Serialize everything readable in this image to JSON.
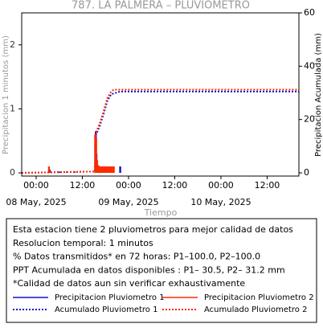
{
  "chart_data": {
    "type": "bar",
    "title": "787. LA PALMERA – PLUVIOMETRO",
    "ylabel": "Precipitacion 1 minutos (mm)",
    "y2label": "Precipitacion Acumulada (mm)",
    "xlabel": "Tiempo",
    "xlim": [
      "2025-05-07T20:15",
      "2025-05-10T20:15"
    ],
    "xticks": [
      {
        "value": "2025-05-08T00:00",
        "label": "00:00"
      },
      {
        "value": "2025-05-08T12:00",
        "label": "12:00"
      },
      {
        "value": "2025-05-09T00:00",
        "label": "00:00"
      },
      {
        "value": "2025-05-09T12:00",
        "label": "12:00"
      },
      {
        "value": "2025-05-10T00:00",
        "label": "00:00"
      },
      {
        "value": "2025-05-10T12:00",
        "label": "12:00"
      }
    ],
    "xdate_labels": [
      {
        "value": "2025-05-08T00:00",
        "label": "08 May, 2025"
      },
      {
        "value": "2025-05-09T00:00",
        "label": "09 May, 2025"
      },
      {
        "value": "2025-05-10T00:00",
        "label": "10 May, 2025"
      }
    ],
    "ylim": [
      -0.05,
      2.5
    ],
    "yticks": [
      0,
      1,
      2
    ],
    "y2lim": [
      -1.2,
      60
    ],
    "y2ticks": [
      0,
      20,
      40,
      60
    ],
    "series": [
      {
        "name": "Precipitacion Pluviometro 1",
        "color": "#1010d0",
        "kind": "bar",
        "x": [
          "2025-05-08T03:30",
          "2025-05-08T06:00",
          "2025-05-08T08:00",
          "2025-05-08T10:00",
          "2025-05-08T15:30",
          "2025-05-08T15:40",
          "2025-05-08T16:00",
          "2025-05-08T17:00",
          "2025-05-08T18:00",
          "2025-05-08T19:00",
          "2025-05-08T21:50"
        ],
        "values": [
          0.05,
          0.02,
          0.02,
          0.02,
          0.65,
          0.3,
          0.1,
          0.1,
          0.1,
          0.1,
          0.1
        ]
      },
      {
        "name": "Precipitacion Pluviometro 2",
        "color": "#ff2a00",
        "kind": "bar",
        "x": [
          "2025-05-08T03:20",
          "2025-05-08T15:20",
          "2025-05-08T15:35",
          "2025-05-08T15:50",
          "2025-05-08T16:10",
          "2025-05-08T16:30",
          "2025-05-08T16:50",
          "2025-05-08T17:10",
          "2025-05-08T17:30",
          "2025-05-08T17:50",
          "2025-05-08T18:10",
          "2025-05-08T18:30",
          "2025-05-08T18:50",
          "2025-05-08T19:10",
          "2025-05-08T19:30",
          "2025-05-08T19:50",
          "2025-05-08T20:10"
        ],
        "values": [
          0.1,
          0.6,
          0.55,
          0.2,
          0.12,
          0.1,
          0.1,
          0.1,
          0.1,
          0.1,
          0.1,
          0.1,
          0.1,
          0.1,
          0.1,
          0.1,
          0.1
        ]
      },
      {
        "name": "Acumulado Pluviometro 1",
        "color": "#1010d0",
        "kind": "line",
        "dash": "2,2",
        "axis": "y2",
        "x": [
          "2025-05-07T20:15",
          "2025-05-08T15:15",
          "2025-05-08T15:30",
          "2025-05-08T16:30",
          "2025-05-08T17:30",
          "2025-05-08T18:30",
          "2025-05-08T19:30",
          "2025-05-08T21:50",
          "2025-05-10T20:15"
        ],
        "values": [
          0,
          0.5,
          14,
          17.5,
          22,
          27,
          29.5,
          30.5,
          30.5
        ]
      },
      {
        "name": "Acumulado Pluviometro 2",
        "color": "#ff2a00",
        "kind": "line",
        "dash": "2,2",
        "axis": "y2",
        "x": [
          "2025-05-07T20:15",
          "2025-05-08T15:15",
          "2025-05-08T15:30",
          "2025-05-08T16:30",
          "2025-05-08T17:30",
          "2025-05-08T18:30",
          "2025-05-08T19:30",
          "2025-05-08T20:10",
          "2025-05-10T20:15"
        ],
        "values": [
          0,
          0.5,
          15,
          18.5,
          23,
          28,
          30.5,
          31.2,
          31.2
        ]
      }
    ],
    "notes": [
      "Esta estacion tiene 2 pluviometros para mejor calidad de datos",
      "Resolucion temporal: 1 minutos",
      "% Datos transmitidos* en 72 horas: P1–100.0, P2–100.0",
      "PPT Acumulada en datos disponibles : P1– 30.5, P2– 31.2 mm",
      "*Calidad de datos aun sin verificar exhaustivamente"
    ]
  }
}
